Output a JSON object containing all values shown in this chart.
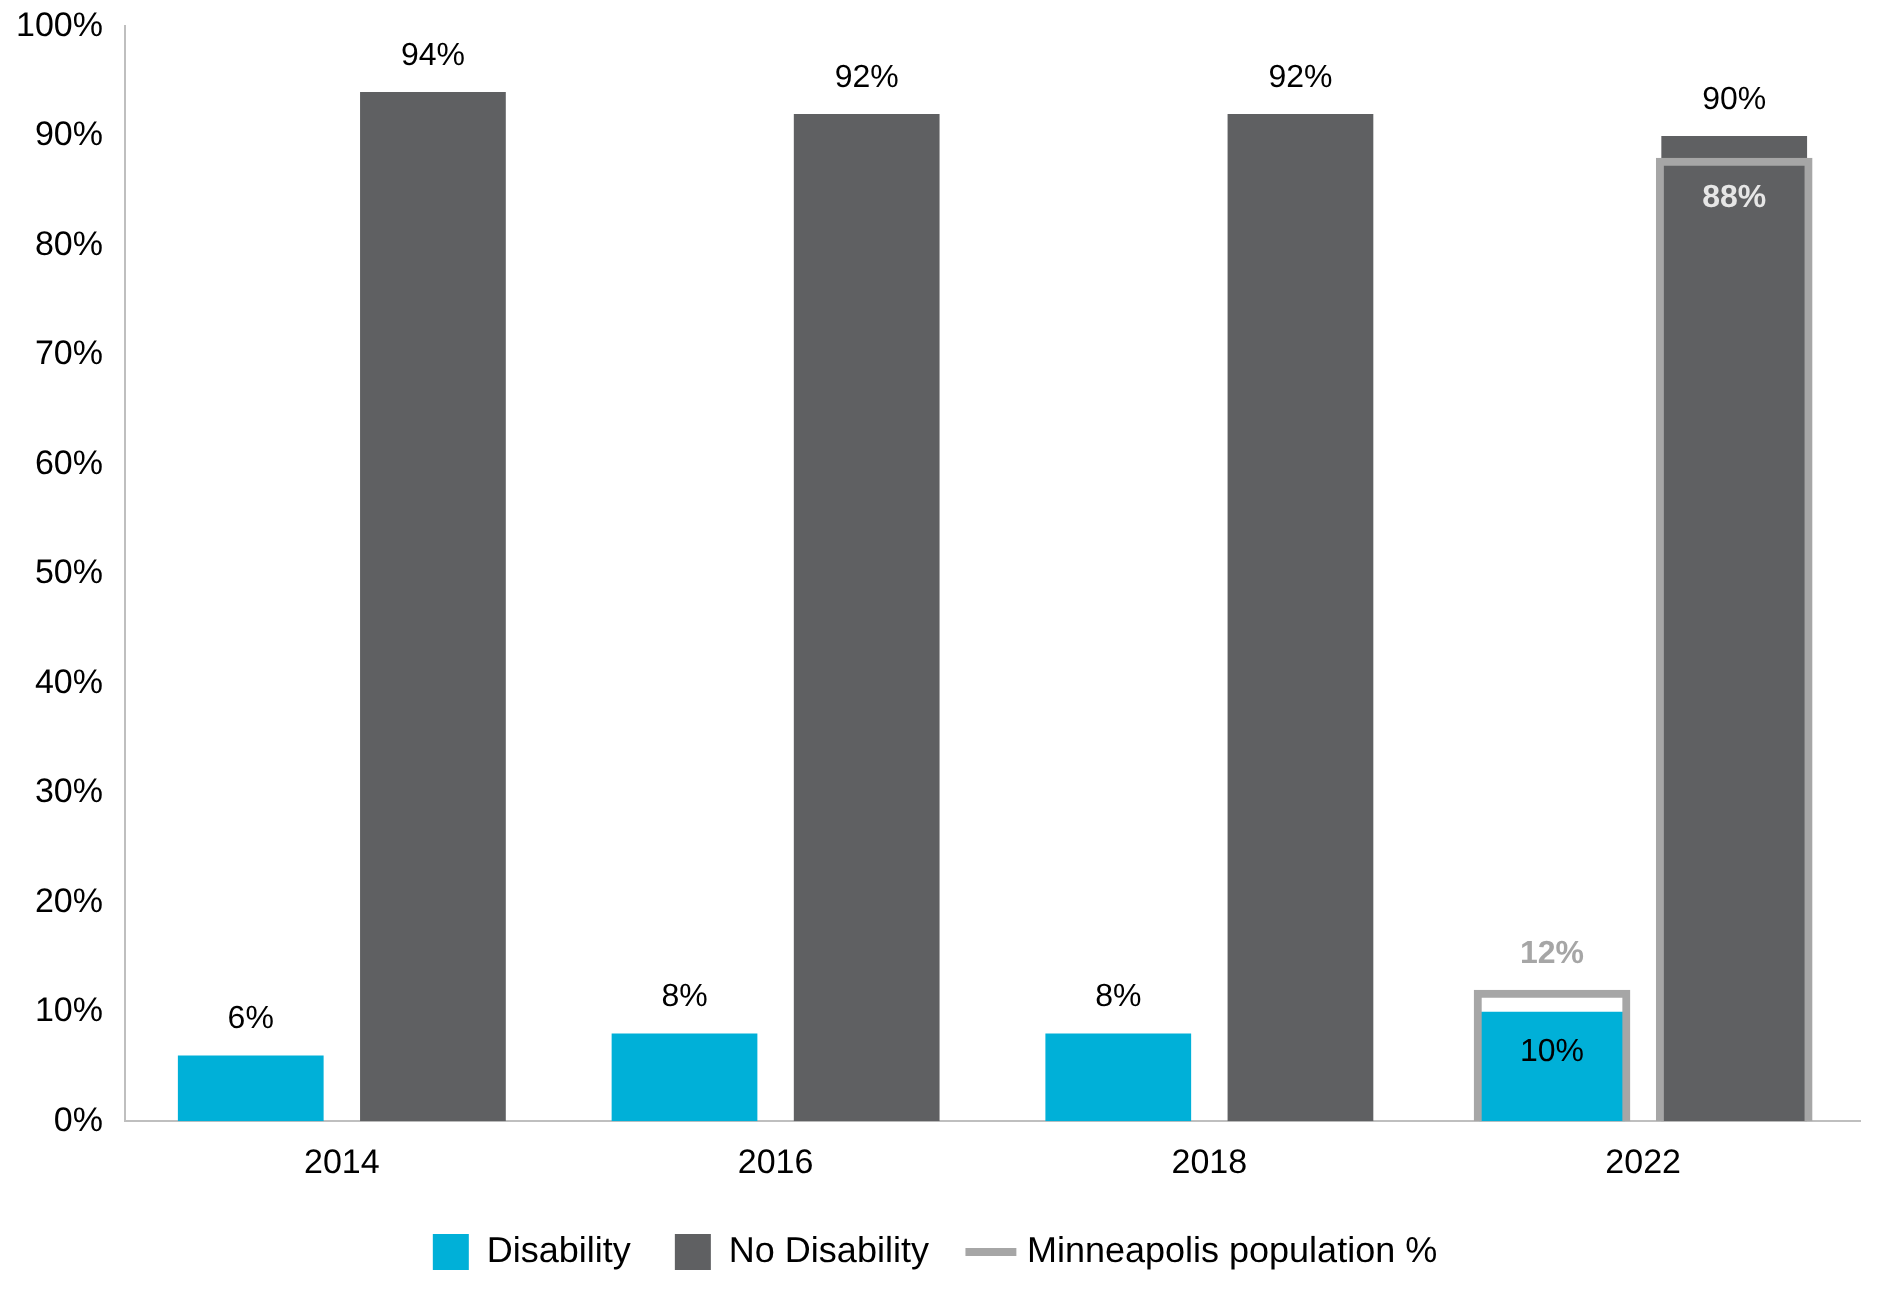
{
  "chart_data": {
    "type": "bar",
    "categories": [
      "2014",
      "2016",
      "2018",
      "2022"
    ],
    "series": [
      {
        "name": "Disability",
        "color": "#00b0d8",
        "values": [
          6,
          8,
          8,
          10
        ],
        "value_labels": [
          "6%",
          "8%",
          "8%",
          "10%"
        ]
      },
      {
        "name": "No Disability",
        "color": "#5f6062",
        "values": [
          94,
          92,
          92,
          90
        ],
        "value_labels": [
          "94%",
          "92%",
          "92%",
          "90%"
        ]
      },
      {
        "name": "Minneapolis population %",
        "color": "#a6a6a6",
        "values": [
          null,
          null,
          null,
          12
        ],
        "value_labels": [
          null,
          null,
          null,
          "12%"
        ]
      },
      {
        "color": "#a6a6a6",
        "values": [
          null,
          null,
          null,
          88
        ],
        "value_labels": [
          null,
          null,
          null,
          "88%"
        ]
      }
    ],
    "ylim": [
      0,
      100
    ],
    "yticks": [
      {
        "value": 0,
        "label": "0%"
      },
      {
        "value": 10,
        "label": "10%"
      },
      {
        "value": 20,
        "label": "20%"
      },
      {
        "value": 30,
        "label": "30%"
      },
      {
        "value": 40,
        "label": "40%"
      },
      {
        "value": 50,
        "label": "50%"
      },
      {
        "value": 60,
        "label": "60%"
      },
      {
        "value": 70,
        "label": "70%"
      },
      {
        "value": 80,
        "label": "80%"
      },
      {
        "value": 90,
        "label": "90%"
      },
      {
        "value": 100,
        "label": "100%"
      }
    ],
    "grid": false,
    "legend": "bottom"
  }
}
